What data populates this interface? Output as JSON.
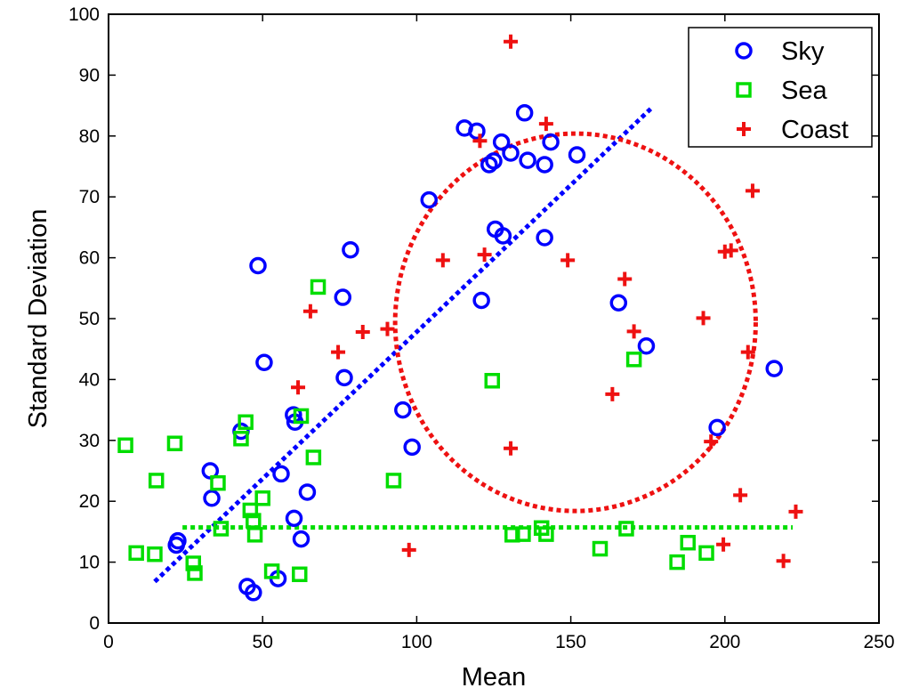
{
  "chart_data": {
    "type": "scatter",
    "title": "",
    "xlabel": "Mean",
    "ylabel": "Standard Deviation",
    "xlim": [
      0,
      250
    ],
    "ylim": [
      0,
      100
    ],
    "xticks": [
      0,
      50,
      100,
      150,
      200,
      250
    ],
    "yticks": [
      0,
      10,
      20,
      30,
      40,
      50,
      60,
      70,
      80,
      90,
      100
    ],
    "grid": false,
    "legend_position": "top-right",
    "series": [
      {
        "name": "Sky",
        "marker": "circle",
        "color": "#0000ff",
        "points": [
          [
            22,
            12.8
          ],
          [
            22.5,
            13.5
          ],
          [
            33,
            25
          ],
          [
            33.5,
            20.5
          ],
          [
            43,
            31.5
          ],
          [
            45,
            6
          ],
          [
            47,
            5
          ],
          [
            48.5,
            58.7
          ],
          [
            50.5,
            42.8
          ],
          [
            55,
            7.3
          ],
          [
            56,
            24.5
          ],
          [
            60,
            34.2
          ],
          [
            60.2,
            17.2
          ],
          [
            60.5,
            33
          ],
          [
            62.5,
            13.8
          ],
          [
            64.5,
            21.5
          ],
          [
            76,
            53.5
          ],
          [
            76.5,
            40.3
          ],
          [
            78.5,
            61.3
          ],
          [
            95.5,
            35
          ],
          [
            98.5,
            28.9
          ],
          [
            104,
            69.5
          ],
          [
            115.5,
            81.3
          ],
          [
            119.5,
            80.8
          ],
          [
            121,
            53
          ],
          [
            123.5,
            75.3
          ],
          [
            125,
            75.9
          ],
          [
            125.5,
            64.7
          ],
          [
            127.5,
            79
          ],
          [
            128,
            63.6
          ],
          [
            130.5,
            77.2
          ],
          [
            135,
            83.8
          ],
          [
            136,
            76
          ],
          [
            141.5,
            75.3
          ],
          [
            141.5,
            63.3
          ],
          [
            143.5,
            79
          ],
          [
            152,
            76.9
          ],
          [
            165.5,
            52.6
          ],
          [
            174.5,
            45.5
          ],
          [
            197.5,
            32.1
          ],
          [
            216,
            41.8
          ]
        ]
      },
      {
        "name": "Sea",
        "marker": "square",
        "color": "#00dd00",
        "points": [
          [
            5.5,
            29.2
          ],
          [
            9,
            11.5
          ],
          [
            15,
            11.3
          ],
          [
            15.5,
            23.4
          ],
          [
            21.5,
            29.5
          ],
          [
            27.5,
            9.8
          ],
          [
            28,
            8.2
          ],
          [
            35.5,
            23
          ],
          [
            36.5,
            15.5
          ],
          [
            43,
            30.3
          ],
          [
            44.5,
            33
          ],
          [
            46,
            18.5
          ],
          [
            47,
            16.8
          ],
          [
            47.5,
            14.5
          ],
          [
            50,
            20.5
          ],
          [
            53,
            8.5
          ],
          [
            62,
            8
          ],
          [
            62.5,
            34
          ],
          [
            66.5,
            27.2
          ],
          [
            68,
            55.2
          ],
          [
            92.5,
            23.4
          ],
          [
            124.5,
            39.8
          ],
          [
            131,
            14.5
          ],
          [
            134.5,
            14.6
          ],
          [
            140.5,
            15.6
          ],
          [
            142,
            14.6
          ],
          [
            159.5,
            12.2
          ],
          [
            168,
            15.5
          ],
          [
            170.5,
            43.3
          ],
          [
            184.5,
            10
          ],
          [
            188,
            13.2
          ],
          [
            194,
            11.5
          ]
        ]
      },
      {
        "name": "Coast",
        "marker": "plus",
        "color": "#ee1111",
        "points": [
          [
            61.5,
            38.7
          ],
          [
            65.5,
            51.2
          ],
          [
            74.5,
            44.5
          ],
          [
            82.5,
            47.8
          ],
          [
            90.5,
            48.3
          ],
          [
            97.5,
            12
          ],
          [
            108.5,
            59.6
          ],
          [
            120.5,
            79.2
          ],
          [
            122,
            60.5
          ],
          [
            130.5,
            95.5
          ],
          [
            130.5,
            28.7
          ],
          [
            142,
            82
          ],
          [
            149,
            59.6
          ],
          [
            163.5,
            37.6
          ],
          [
            167.5,
            56.5
          ],
          [
            170.5,
            47.9
          ],
          [
            193,
            50.1
          ],
          [
            195.5,
            29.8
          ],
          [
            199.5,
            12.9
          ],
          [
            205,
            21
          ],
          [
            200,
            61
          ],
          [
            202,
            61.2
          ],
          [
            207.5,
            44.5
          ],
          [
            209,
            71
          ],
          [
            219,
            10.2
          ],
          [
            223,
            18.3
          ]
        ]
      }
    ],
    "fit_lines": [
      {
        "series": "Sky",
        "color": "#0000ff",
        "style": "dotted",
        "from": [
          15,
          6.8
        ],
        "to": [
          176,
          84.5
        ]
      },
      {
        "series": "Sea",
        "color": "#00dd00",
        "style": "dotted",
        "from": [
          24,
          15.7
        ],
        "to": [
          222,
          15.7
        ]
      }
    ],
    "ellipse": {
      "series": "Coast",
      "color": "#ee1111",
      "style": "dotted",
      "center": [
        151.5,
        49.4
      ],
      "rx": 58.5,
      "ry": 31
    }
  }
}
